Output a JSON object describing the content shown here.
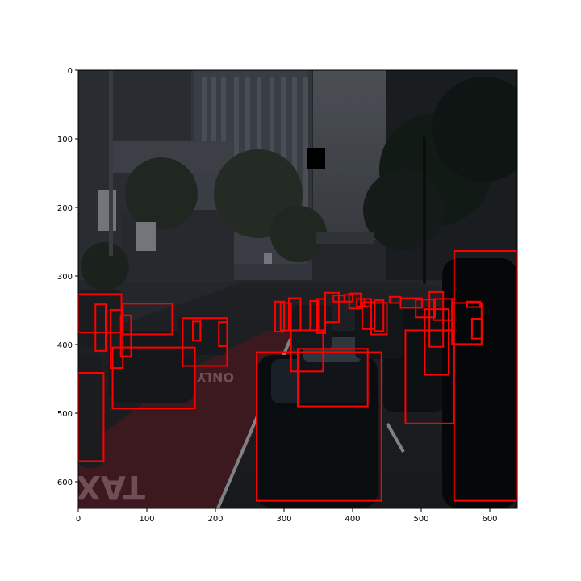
{
  "figure": {
    "image_description_icon": "street-scene-photo",
    "x_ticks": [
      "0",
      "100",
      "200",
      "300",
      "400",
      "500",
      "600"
    ],
    "y_ticks": [
      "0",
      "100",
      "200",
      "300",
      "400",
      "500",
      "600"
    ],
    "road_text": "ONLY",
    "taxi_text": "TAXI",
    "box_color": "#ff0000",
    "image_extent": [
      640,
      640
    ],
    "boxes": [
      [
        0,
        327,
        63,
        383
      ],
      [
        25,
        342,
        40,
        410
      ],
      [
        47,
        350,
        65,
        435
      ],
      [
        65,
        341,
        137,
        386
      ],
      [
        62,
        358,
        77,
        418
      ],
      [
        50,
        405,
        170,
        494
      ],
      [
        0,
        442,
        37,
        571
      ],
      [
        152,
        362,
        217,
        432
      ],
      [
        167,
        367,
        178,
        395
      ],
      [
        205,
        368,
        217,
        403
      ],
      [
        260,
        412,
        442,
        629
      ],
      [
        310,
        380,
        357,
        440
      ],
      [
        320,
        407,
        422,
        491
      ],
      [
        287,
        338,
        300,
        382
      ],
      [
        295,
        340,
        310,
        380
      ],
      [
        307,
        333,
        324,
        380
      ],
      [
        338,
        337,
        350,
        380
      ],
      [
        348,
        334,
        360,
        384
      ],
      [
        360,
        325,
        380,
        368
      ],
      [
        372,
        329,
        388,
        338
      ],
      [
        388,
        328,
        400,
        338
      ],
      [
        395,
        326,
        412,
        348
      ],
      [
        412,
        334,
        427,
        345
      ],
      [
        406,
        334,
        417,
        345
      ],
      [
        414,
        339,
        432,
        378
      ],
      [
        432,
        336,
        445,
        381
      ],
      [
        454,
        331,
        470,
        340
      ],
      [
        427,
        340,
        450,
        386
      ],
      [
        470,
        333,
        501,
        347
      ],
      [
        492,
        335,
        520,
        361
      ],
      [
        505,
        349,
        540,
        445
      ],
      [
        512,
        324,
        532,
        404
      ],
      [
        518,
        334,
        545,
        365
      ],
      [
        545,
        340,
        588,
        400
      ],
      [
        567,
        338,
        586,
        346
      ],
      [
        574,
        363,
        589,
        392
      ],
      [
        477,
        380,
        547,
        516
      ],
      [
        548,
        264,
        640,
        629
      ]
    ]
  }
}
